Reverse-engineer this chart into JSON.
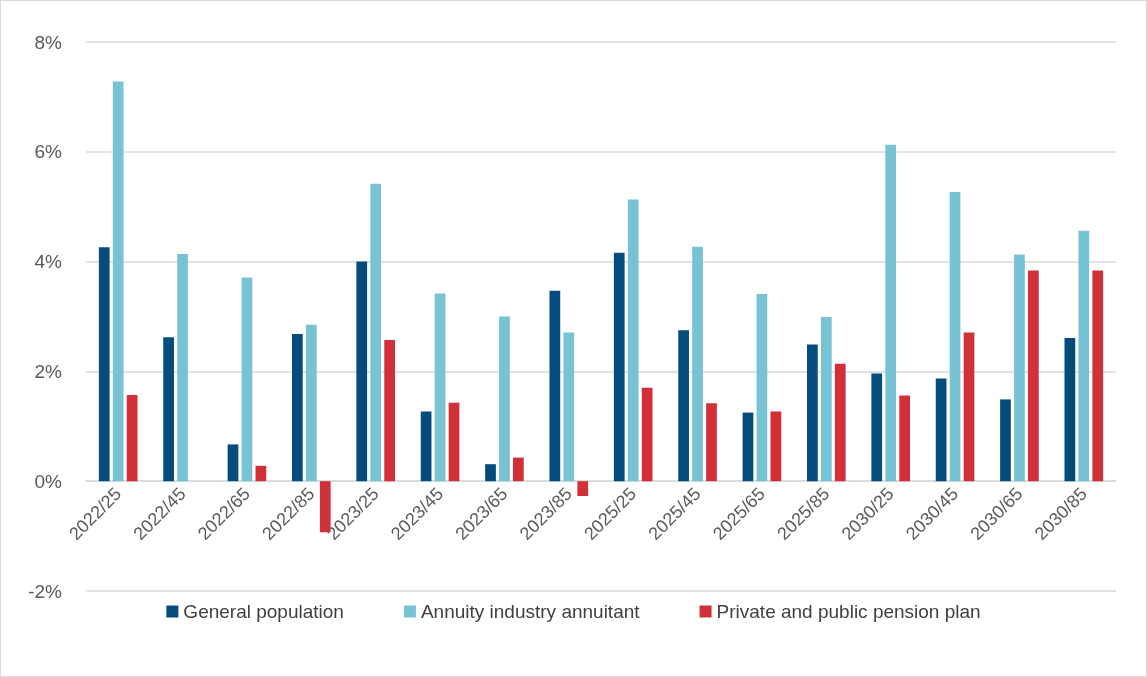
{
  "chart_data": {
    "type": "bar",
    "categories": [
      "2022/25",
      "2022/45",
      "2022/65",
      "2022/85",
      "2023/25",
      "2023/45",
      "2023/65",
      "2023/85",
      "2025/25",
      "2025/45",
      "2025/65",
      "2025/85",
      "2030/25",
      "2030/45",
      "2030/65",
      "2030/85"
    ],
    "series": [
      {
        "name": "General population",
        "color": "#034c7c",
        "values": [
          4.26,
          2.62,
          0.67,
          2.68,
          4.0,
          1.27,
          0.31,
          3.47,
          4.16,
          2.75,
          1.25,
          2.49,
          1.96,
          1.87,
          1.49,
          2.61
        ]
      },
      {
        "name": "Annuity industry annuitant",
        "color": "#77c3d4",
        "values": [
          7.28,
          4.14,
          3.71,
          2.85,
          5.42,
          3.42,
          3.0,
          2.71,
          5.13,
          4.27,
          3.41,
          2.99,
          6.13,
          5.27,
          4.13,
          4.56
        ]
      },
      {
        "name": "Private and public pension plan",
        "color": "#d23039",
        "values": [
          1.57,
          null,
          0.28,
          -0.93,
          2.57,
          1.43,
          0.43,
          -0.27,
          1.7,
          1.42,
          1.27,
          2.14,
          1.56,
          2.71,
          3.84,
          3.84
        ]
      }
    ],
    "ylim": [
      -2,
      8
    ],
    "yticks": [
      {
        "value": -2,
        "label": "-2%"
      },
      {
        "value": 0,
        "label": "0%"
      },
      {
        "value": 2,
        "label": "2%"
      },
      {
        "value": 4,
        "label": "4%"
      },
      {
        "value": 6,
        "label": "6%"
      },
      {
        "value": 8,
        "label": "8%"
      }
    ],
    "grid": "y",
    "legend": "bottom"
  }
}
